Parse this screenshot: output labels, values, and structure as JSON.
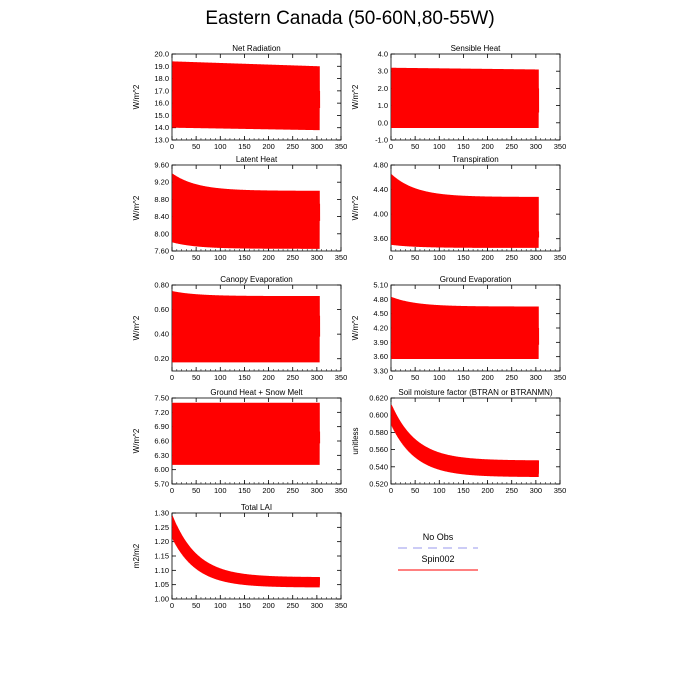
{
  "figure": {
    "title": "Eastern Canada (50-60N,80-55W)"
  },
  "legend": {
    "entries": [
      {
        "label": "No Obs",
        "color": "#9999ee",
        "dashed": true
      },
      {
        "label": "Spin002",
        "color": "#ff0000",
        "dashed": false
      }
    ]
  },
  "chart_data": [
    {
      "type": "line",
      "title": "Net Radiation",
      "ylabel": "W/m^2",
      "xlim": [
        0,
        350
      ],
      "ylim": [
        13.0,
        20.0
      ],
      "xticks": [
        "0",
        "50",
        "100",
        "150",
        "200",
        "250",
        "300",
        "350"
      ],
      "yticks": [
        "13.0",
        "14.0",
        "15.0",
        "16.0",
        "17.0",
        "18.0",
        "19.0",
        "20.0"
      ],
      "series": [
        {
          "x_start": 1,
          "x_end": 306,
          "annual_max_start": 19.4,
          "annual_max_end": 19.0,
          "annual_min_start": 14.0,
          "annual_min_end": 13.8,
          "band_low": 15.6,
          "band_high": 17.0,
          "color": "#ff0000"
        }
      ]
    },
    {
      "type": "line",
      "title": "Sensible Heat",
      "ylabel": "W/m^2",
      "xlim": [
        0,
        350
      ],
      "ylim": [
        -1.0,
        4.0
      ],
      "xticks": [
        "0",
        "50",
        "100",
        "150",
        "200",
        "250",
        "300",
        "350"
      ],
      "yticks": [
        "-1.0",
        "0.0",
        "1.0",
        "2.0",
        "3.0",
        "4.0"
      ],
      "series": [
        {
          "x_start": 1,
          "x_end": 306,
          "annual_max_start": 3.2,
          "annual_max_end": 3.1,
          "annual_min_start": -0.3,
          "annual_min_end": -0.3,
          "band_low": 0.6,
          "band_high": 2.0,
          "color": "#ff0000"
        }
      ]
    },
    {
      "type": "line",
      "title": "Latent Heat",
      "ylabel": "W/m^2",
      "xlim": [
        0,
        350
      ],
      "ylim": [
        7.6,
        9.6
      ],
      "xticks": [
        "0",
        "50",
        "100",
        "150",
        "200",
        "250",
        "300",
        "350"
      ],
      "yticks": [
        "7.60",
        "8.00",
        "8.40",
        "8.80",
        "9.20",
        "9.60"
      ],
      "series": [
        {
          "x_start": 1,
          "x_end": 306,
          "annual_max_start": 9.4,
          "annual_max_end": 9.0,
          "annual_min_start": 7.8,
          "annual_min_end": 7.65,
          "band_low": 8.3,
          "band_high": 8.7,
          "color": "#ff0000"
        }
      ]
    },
    {
      "type": "line",
      "title": "Transpiration",
      "ylabel": "W/m^2",
      "xlim": [
        0,
        350
      ],
      "ylim": [
        3.4,
        4.8
      ],
      "xticks": [
        "0",
        "50",
        "100",
        "150",
        "200",
        "250",
        "300",
        "350"
      ],
      "yticks": [
        "3.60",
        "4.00",
        "4.40",
        "4.80"
      ],
      "series": [
        {
          "x_start": 1,
          "x_end": 306,
          "annual_max_start": 4.65,
          "annual_max_end": 4.28,
          "annual_min_start": 3.5,
          "annual_min_end": 3.45,
          "band_low": 3.62,
          "band_high": 3.72,
          "color": "#ff0000"
        }
      ]
    },
    {
      "type": "line",
      "title": "Canopy Evaporation",
      "ylabel": "W/m^2",
      "xlim": [
        0,
        350
      ],
      "ylim": [
        0.1,
        0.8
      ],
      "xticks": [
        "0",
        "50",
        "100",
        "150",
        "200",
        "250",
        "300",
        "350"
      ],
      "yticks": [
        "0.20",
        "0.40",
        "0.60",
        "0.80"
      ],
      "series": [
        {
          "x_start": 1,
          "x_end": 306,
          "annual_max_start": 0.75,
          "annual_max_end": 0.71,
          "annual_min_start": 0.17,
          "annual_min_end": 0.17,
          "band_low": 0.38,
          "band_high": 0.55,
          "color": "#ff0000"
        }
      ]
    },
    {
      "type": "line",
      "title": "Ground Evaporation",
      "ylabel": "W/m^2",
      "xlim": [
        0,
        350
      ],
      "ylim": [
        3.3,
        5.1
      ],
      "xticks": [
        "0",
        "50",
        "100",
        "150",
        "200",
        "250",
        "300",
        "350"
      ],
      "yticks": [
        "3.30",
        "3.60",
        "3.90",
        "4.20",
        "4.50",
        "4.80",
        "5.10"
      ],
      "series": [
        {
          "x_start": 1,
          "x_end": 306,
          "annual_max_start": 4.85,
          "annual_max_end": 4.65,
          "annual_min_start": 3.55,
          "annual_min_end": 3.55,
          "band_low": 3.85,
          "band_high": 4.2,
          "color": "#ff0000"
        }
      ]
    },
    {
      "type": "line",
      "title": "Ground Heat + Snow Melt",
      "ylabel": "W/m^2",
      "xlim": [
        0,
        350
      ],
      "ylim": [
        5.7,
        7.5
      ],
      "xticks": [
        "0",
        "50",
        "100",
        "150",
        "200",
        "250",
        "300",
        "350"
      ],
      "yticks": [
        "5.70",
        "6.00",
        "6.30",
        "6.60",
        "6.90",
        "7.20",
        "7.50"
      ],
      "series": [
        {
          "x_start": 1,
          "x_end": 306,
          "annual_max_start": 7.4,
          "annual_max_end": 7.4,
          "annual_min_start": 6.1,
          "annual_min_end": 6.1,
          "band_low": 6.55,
          "band_high": 6.8,
          "color": "#ff0000"
        }
      ]
    },
    {
      "type": "line",
      "title": "Soil moisture factor (BTRAN or BTRANMN)",
      "ylabel": "unitless",
      "xlim": [
        0,
        350
      ],
      "ylim": [
        0.52,
        0.62
      ],
      "xticks": [
        "0",
        "50",
        "100",
        "150",
        "200",
        "250",
        "300",
        "350"
      ],
      "yticks": [
        "0.520",
        "0.540",
        "0.560",
        "0.580",
        "0.600",
        "0.620"
      ],
      "series": [
        {
          "x_start": 1,
          "x_end": 306,
          "annual_max_start": 0.612,
          "annual_max_end": 0.547,
          "annual_min_start": 0.588,
          "annual_min_end": 0.528,
          "band_low": 0,
          "band_high": 0,
          "color": "#ff0000"
        }
      ]
    },
    {
      "type": "line",
      "title": "Total LAI",
      "ylabel": "m2/m2",
      "xlim": [
        0,
        350
      ],
      "ylim": [
        1.0,
        1.3
      ],
      "xticks": [
        "0",
        "50",
        "100",
        "150",
        "200",
        "250",
        "300",
        "350"
      ],
      "yticks": [
        "1.00",
        "1.05",
        "1.10",
        "1.15",
        "1.20",
        "1.25",
        "1.30"
      ],
      "series": [
        {
          "x_start": 1,
          "x_end": 306,
          "annual_max_start": 1.29,
          "annual_max_end": 1.075,
          "annual_min_start": 1.21,
          "annual_min_end": 1.04,
          "band_low": 0,
          "band_high": 0,
          "color": "#ff0000"
        }
      ]
    }
  ]
}
